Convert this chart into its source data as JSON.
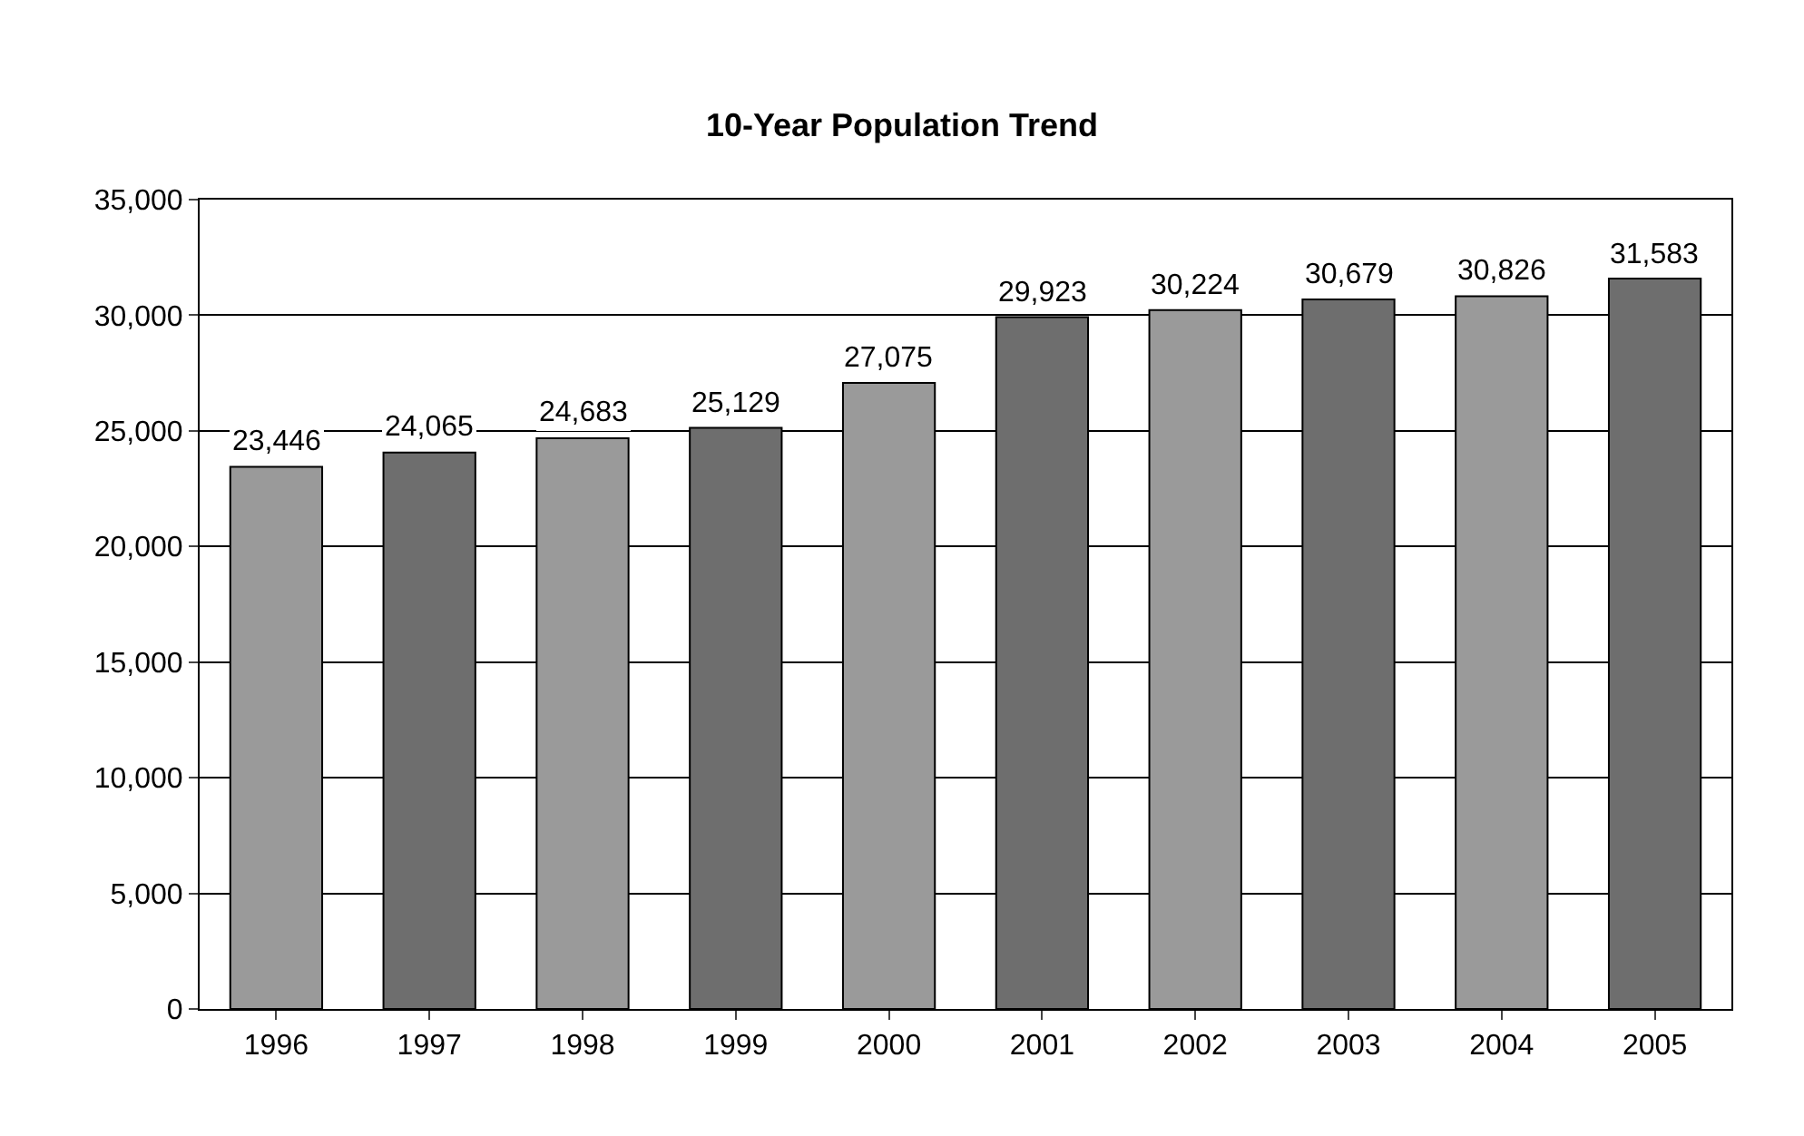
{
  "chart_data": {
    "type": "bar",
    "title": "10-Year Population Trend",
    "categories": [
      "1996",
      "1997",
      "1998",
      "1999",
      "2000",
      "2001",
      "2002",
      "2003",
      "2004",
      "2005"
    ],
    "values": [
      23446,
      24065,
      24683,
      25129,
      27075,
      29923,
      30224,
      30679,
      30826,
      31583
    ],
    "colors": [
      "#9a9a9a",
      "#6e6e6e",
      "#9a9a9a",
      "#6e6e6e",
      "#9a9a9a",
      "#6e6e6e",
      "#9a9a9a",
      "#6e6e6e",
      "#9a9a9a",
      "#6e6e6e"
    ],
    "value_labels": [
      "23,446",
      "24,065",
      "24,683",
      "25,129",
      "27,075",
      "29,923",
      "30,224",
      "30,679",
      "30,826",
      "31,583"
    ],
    "ylim": [
      0,
      35000
    ],
    "yticks": [
      {
        "value": 0,
        "label": "0"
      },
      {
        "value": 5000,
        "label": "5,000"
      },
      {
        "value": 10000,
        "label": "10,000"
      },
      {
        "value": 15000,
        "label": "15,000"
      },
      {
        "value": 20000,
        "label": "20,000"
      },
      {
        "value": 25000,
        "label": "25,000"
      },
      {
        "value": 30000,
        "label": "30,000"
      },
      {
        "value": 35000,
        "label": "35,000"
      }
    ],
    "grid": "y",
    "legend": false
  }
}
